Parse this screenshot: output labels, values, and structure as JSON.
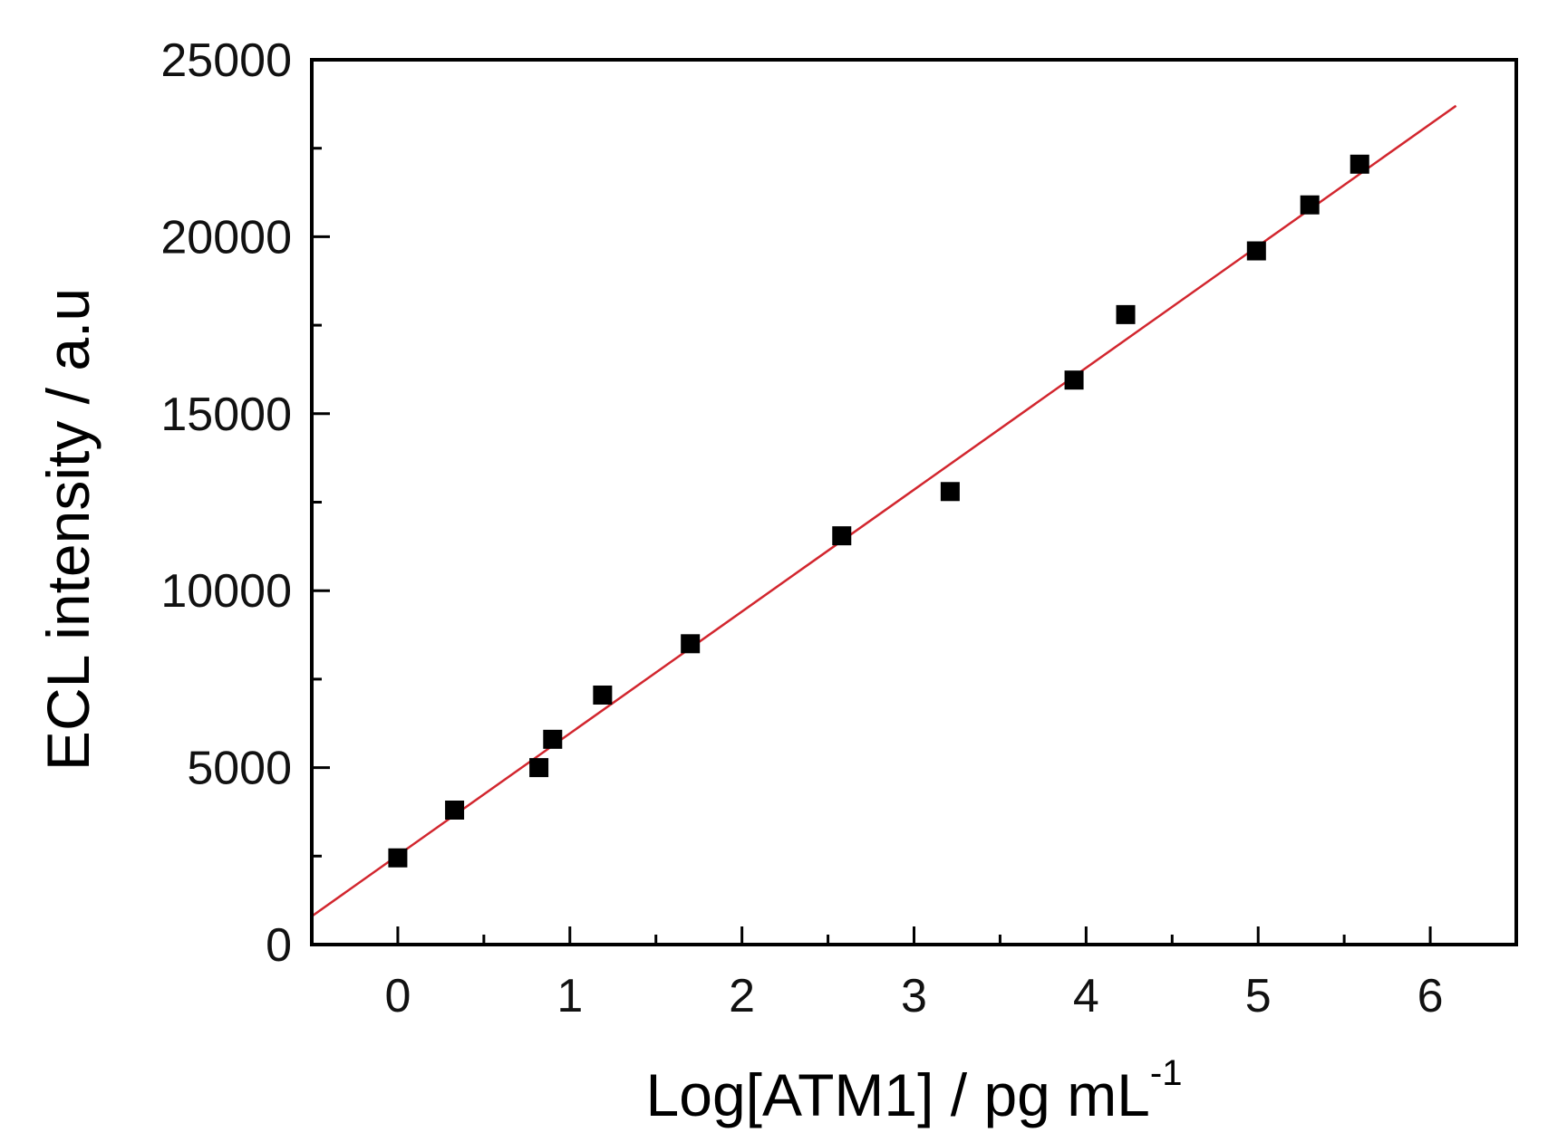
{
  "chart_data": {
    "type": "scatter",
    "xlabel": "Log[ATM1] / pg mL",
    "xlabel_superscript": "-1",
    "ylabel": "ECL intensity / a.u",
    "xlim": [
      -0.5,
      6.5
    ],
    "ylim": [
      0,
      25000
    ],
    "x_ticks": [
      0,
      1,
      2,
      3,
      4,
      5,
      6
    ],
    "y_ticks": [
      0,
      5000,
      10000,
      15000,
      20000,
      25000
    ],
    "x_tick_labels": [
      "0",
      "1",
      "2",
      "3",
      "4",
      "5",
      "6"
    ],
    "y_tick_labels": [
      "0",
      "5000",
      "10000",
      "15000",
      "20000",
      "25000"
    ],
    "grid": false,
    "series": [
      {
        "marker": "square",
        "color": "#000000",
        "points": [
          {
            "x": 0.0,
            "y": 2450
          },
          {
            "x": 0.33,
            "y": 3800
          },
          {
            "x": 0.82,
            "y": 5000
          },
          {
            "x": 0.9,
            "y": 5800
          },
          {
            "x": 1.19,
            "y": 7050
          },
          {
            "x": 1.7,
            "y": 8500
          },
          {
            "x": 2.58,
            "y": 11550
          },
          {
            "x": 3.21,
            "y": 12800
          },
          {
            "x": 3.93,
            "y": 15950
          },
          {
            "x": 4.23,
            "y": 17800
          },
          {
            "x": 4.99,
            "y": 19600
          },
          {
            "x": 5.3,
            "y": 20900
          },
          {
            "x": 5.59,
            "y": 22050
          }
        ]
      }
    ],
    "fit_line": {
      "color": "#d2262e",
      "x": [
        -0.5,
        6.15
      ],
      "y": [
        800,
        23700
      ]
    }
  }
}
